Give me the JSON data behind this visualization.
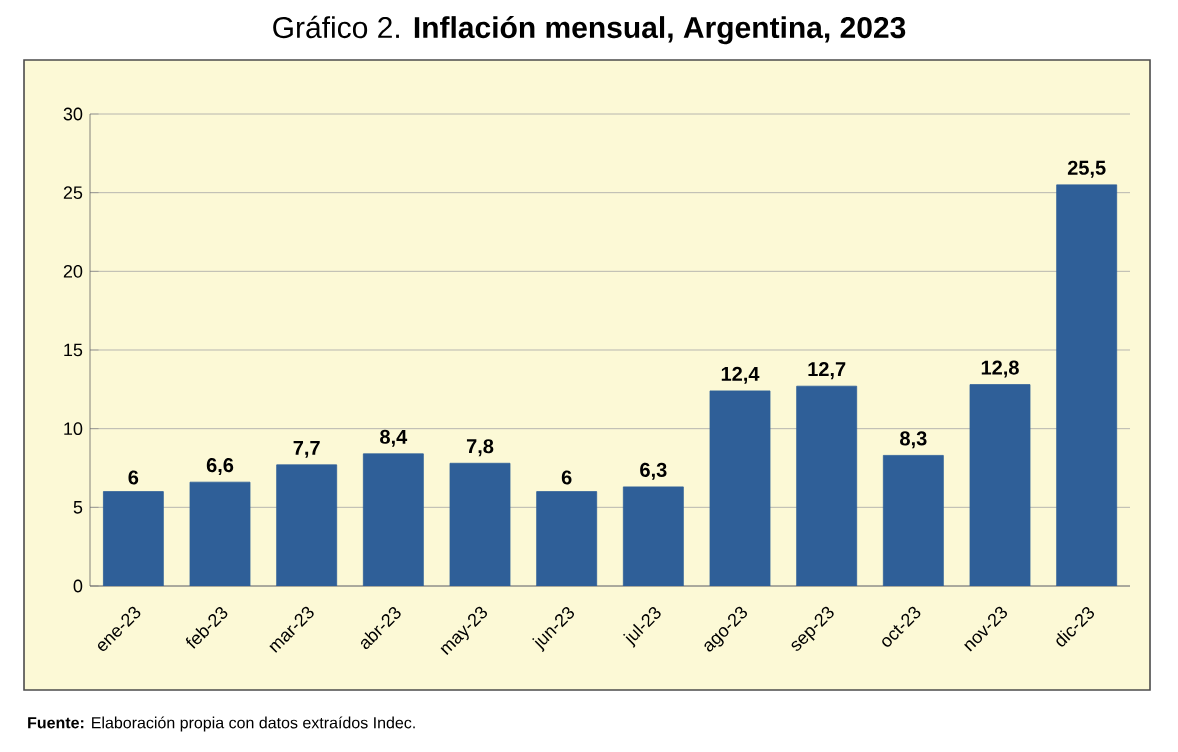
{
  "chart_data": {
    "type": "bar",
    "title": "Gráfico 2. **Inflación mensual, Argentina, 2023**",
    "categories": [
      "ene-23",
      "feb-23",
      "mar-23",
      "abr-23",
      "may-23",
      "jun-23",
      "jul-23",
      "ago-23",
      "sep-23",
      "oct-23",
      "nov-23",
      "dic-23"
    ],
    "values": [
      6,
      6.6,
      7.7,
      8.4,
      7.8,
      6,
      6.3,
      12.4,
      12.7,
      8.3,
      12.8,
      25.5
    ],
    "value_labels": [
      "6",
      "6,6",
      "7,7",
      "8,4",
      "7,8",
      "6",
      "6,3",
      "12,4",
      "12,7",
      "8,3",
      "12,8",
      "25,5"
    ],
    "color": "#2f5f98",
    "ylim": [
      0,
      30
    ],
    "yticks": [
      0,
      5,
      10,
      15,
      20,
      25,
      30
    ],
    "grid": "y",
    "annotations": [
      "**Fuente:**  Elaboración propia con datos extraídos Indec."
    ]
  }
}
